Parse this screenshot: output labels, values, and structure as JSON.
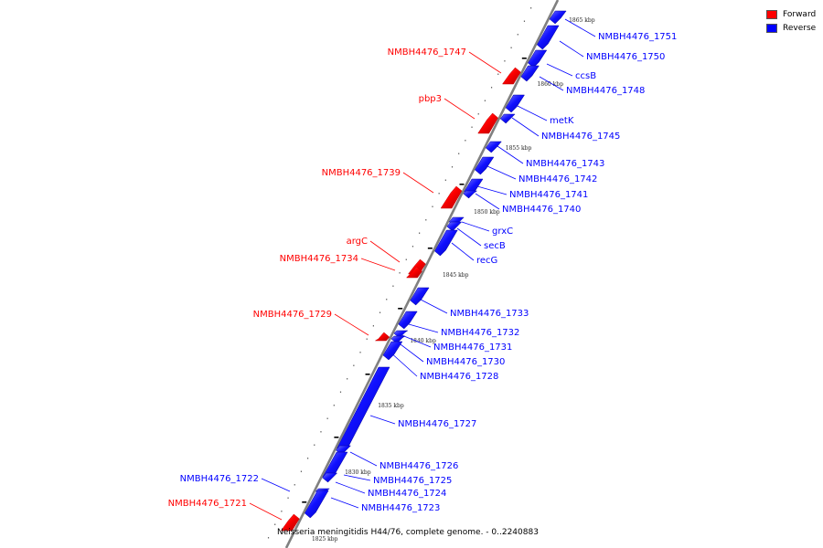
{
  "legend": {
    "forward": {
      "label": "Forward",
      "color": "#ff0000"
    },
    "reverse": {
      "label": "Reverse",
      "color": "#0000ff"
    }
  },
  "caption": "Neisseria meningitidis H44/76, complete genome. - 0..2240883",
  "ticks": [
    "1865 kbp",
    "1860 kbp",
    "1855 kbp",
    "1850 kbp",
    "1845 kbp",
    "1840 kbp",
    "1835 kbp",
    "1830 kbp",
    "1825 kbp"
  ],
  "genes": [
    {
      "name": "NMBH4476_1751",
      "strand": "reverse"
    },
    {
      "name": "NMBH4476_1750",
      "strand": "reverse"
    },
    {
      "name": "NMBH4476_1747",
      "strand": "forward"
    },
    {
      "name": "ccsB",
      "strand": "reverse"
    },
    {
      "name": "NMBH4476_1748",
      "strand": "reverse"
    },
    {
      "name": "pbp3",
      "strand": "forward"
    },
    {
      "name": "metK",
      "strand": "reverse"
    },
    {
      "name": "NMBH4476_1745",
      "strand": "reverse"
    },
    {
      "name": "NMBH4476_1739",
      "strand": "forward"
    },
    {
      "name": "NMBH4476_1743",
      "strand": "reverse"
    },
    {
      "name": "NMBH4476_1742",
      "strand": "reverse"
    },
    {
      "name": "NMBH4476_1741",
      "strand": "reverse"
    },
    {
      "name": "NMBH4476_1740",
      "strand": "reverse"
    },
    {
      "name": "grxC",
      "strand": "reverse"
    },
    {
      "name": "secB",
      "strand": "reverse"
    },
    {
      "name": "argC",
      "strand": "forward"
    },
    {
      "name": "NMBH4476_1734",
      "strand": "forward"
    },
    {
      "name": "recG",
      "strand": "reverse"
    },
    {
      "name": "NMBH4476_1733",
      "strand": "reverse"
    },
    {
      "name": "NMBH4476_1729",
      "strand": "forward"
    },
    {
      "name": "NMBH4476_1732",
      "strand": "reverse"
    },
    {
      "name": "NMBH4476_1731",
      "strand": "reverse"
    },
    {
      "name": "NMBH4476_1730",
      "strand": "reverse"
    },
    {
      "name": "NMBH4476_1728",
      "strand": "reverse"
    },
    {
      "name": "NMBH4476_1727",
      "strand": "reverse"
    },
    {
      "name": "NMBH4476_1726",
      "strand": "reverse"
    },
    {
      "name": "NMBH4476_1725",
      "strand": "reverse"
    },
    {
      "name": "NMBH4476_1722",
      "strand": "reverse"
    },
    {
      "name": "NMBH4476_1724",
      "strand": "reverse"
    },
    {
      "name": "NMBH4476_1723",
      "strand": "reverse"
    },
    {
      "name": "NMBH4476_1721",
      "strand": "forward"
    }
  ]
}
